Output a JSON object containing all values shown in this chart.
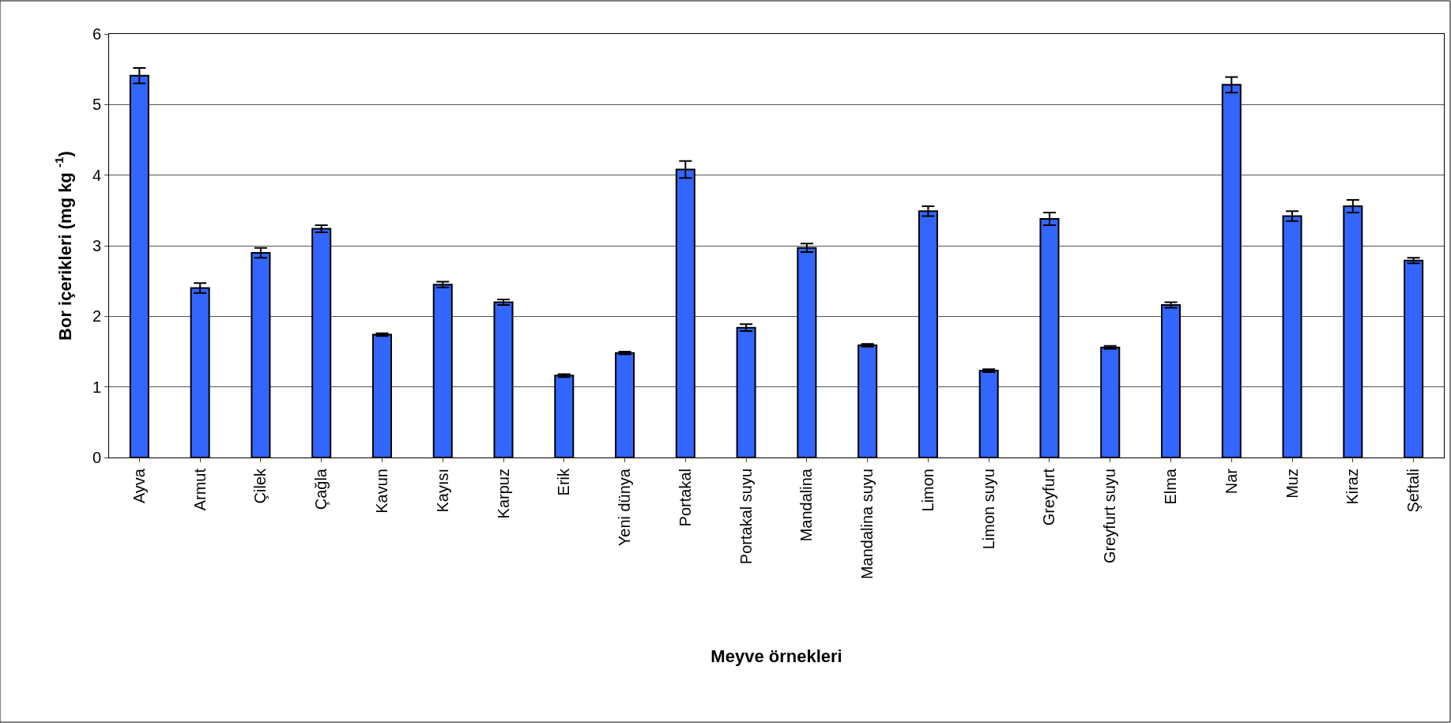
{
  "chart_data": {
    "type": "bar",
    "xlabel": "Meyve örnekleri",
    "ylabel": "Bor içerikleri (mg kg $^{-1}$)",
    "categories": [
      "Ayva",
      "Armut",
      "Çilek",
      "Çağla",
      "Kavun",
      "Kayısı",
      "Karpuz",
      "Erik",
      "Yeni dünya",
      "Portakal",
      "Portakal suyu",
      "Mandalina",
      "Mandalina suyu",
      "Limon",
      "Limon suyu",
      "Greyfurt",
      "Greyfurt suyu",
      "Elma",
      "Nar",
      "Muz",
      "Kiraz",
      "Şeftali"
    ],
    "values": [
      5.41,
      2.4,
      2.9,
      3.24,
      1.74,
      2.45,
      2.2,
      1.16,
      1.48,
      4.08,
      1.84,
      2.97,
      1.59,
      3.49,
      1.23,
      3.38,
      1.56,
      2.16,
      5.28,
      3.42,
      3.56,
      2.79
    ],
    "errors": [
      0.11,
      0.07,
      0.07,
      0.05,
      0.02,
      0.04,
      0.04,
      0.02,
      0.02,
      0.12,
      0.05,
      0.06,
      0.02,
      0.07,
      0.02,
      0.09,
      0.02,
      0.04,
      0.11,
      0.07,
      0.09,
      0.04
    ],
    "color": "#3366ff",
    "ylim": [
      0,
      6
    ],
    "yticks": [
      0,
      1,
      2,
      3,
      4,
      5,
      6
    ],
    "grid": "y"
  }
}
